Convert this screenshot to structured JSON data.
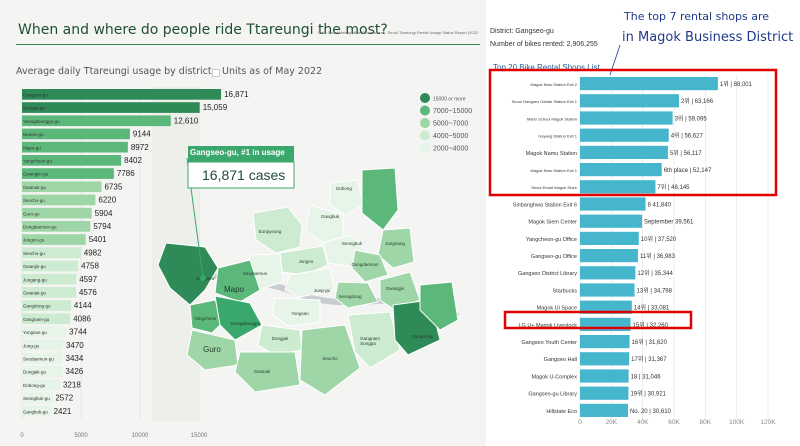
{
  "left_panel": {
    "title": "When and where do people ride Ttareungi the most?",
    "source": "Data Seoul Metropolitan Government - Seoul Ttareungi Rental Usage Status Report (2022)",
    "subtitle": "Average daily Ttareungi usage by district",
    "units": "Units as of May 2022",
    "callout_title": "Gangseo-gu, #1 in usage",
    "callout_value": "16,871 cases",
    "colors": {
      "dark": "#2e8b57",
      "mid": "#5cb87a",
      "light": "#9fd6a8",
      "pale": "#cdebd0",
      "faint": "#e7f4e8",
      "highlight": "#3aa76d"
    }
  },
  "map": {
    "legend": [
      "15000 or more",
      "7000~15000",
      "5000~7000",
      "4000~5000",
      "2000~4000"
    ],
    "labels": [
      "Dobong",
      "Gangbuk",
      "Eunpyeong",
      "Seongbuk",
      "Jongno",
      "Seodaemun",
      "Mapo",
      "Jung-gu",
      "Yongsan",
      "Gangseo",
      "Yangcheon",
      "Yeongdeungpo",
      "Guro",
      "Dongjak",
      "Gwanak",
      "Seocho",
      "Gangnam",
      "Songpa",
      "Gangdong",
      "Gwangjin",
      "Seongdong",
      "Jungnang",
      "Dongdaemun"
    ]
  },
  "right_panel": {
    "district": "District: Gangseo-gu",
    "bikes_rented": "Number of bikes rented: 2,906,255",
    "annotation_line1": "The top 7 rental shops are",
    "annotation_line2": "in Magok Business District",
    "list_title": "Top 20 Bike Rental Shops List"
  },
  "chart_data": [
    {
      "type": "bar",
      "orientation": "horizontal",
      "title": "Average daily Ttareungi usage by district",
      "categories": [
        "Gangseo-gu",
        "Songpa-gu",
        "Yeongdeungpo-gu",
        "Nowon-gu",
        "Mapo-gu",
        "Yangcheon-gu",
        "Gwangjin-gu",
        "Gwanak-gu",
        "Seocho-gu",
        "Guro-gu",
        "Dongdaemun-gu",
        "Jongno-gu",
        "Seocho-gu",
        "Gwanjin-gu",
        "Jungang-gu",
        "Gwanak-gu",
        "Gangdong-gu",
        "Gangnam-gu",
        "Yongsan-gu",
        "Jung-gu",
        "Seodaemun-gu",
        "Dongjak-gu",
        "Dobong-gu",
        "Seongbuk-gu",
        "Gangbuk-gu"
      ],
      "value_labels": [
        "16,871",
        "15,059",
        "12,610",
        "9144",
        "8972",
        "8402",
        "7786",
        "6735",
        "6220",
        "5904",
        "5794",
        "5401",
        "4982",
        "4758",
        "4597",
        "4576",
        "4144",
        "4086",
        "3744",
        "3470",
        "3434",
        "3426",
        "3218",
        "2572",
        "2421"
      ],
      "values": [
        16871,
        15059,
        12610,
        9144,
        8972,
        8402,
        7786,
        6735,
        6220,
        5904,
        5794,
        5401,
        4982,
        4758,
        4597,
        4576,
        4144,
        4086,
        3744,
        3470,
        3434,
        3426,
        3218,
        2572,
        2421
      ],
      "xlim": [
        0,
        15000
      ],
      "ticks": [
        "0",
        "5000",
        "10000",
        "15000"
      ]
    },
    {
      "type": "bar",
      "orientation": "horizontal",
      "title": "Top 20 Bike Rental Shops List",
      "categories": [
        "Magok Naru Station Exit 2",
        "Seoul Gangseo Gahae Station Exit 1",
        "Maho School Magok Station",
        "Gayang Station Exit 1",
        "Magok Namu Station",
        "Magok Naru Station Exit 1",
        "Seoul Emart Magok Store",
        "Sinbanghwa Station Exit 6",
        "Magok Siem Center",
        "Yangcheon-gu Office",
        "Gangseo-gu Office",
        "Gangseo District Library",
        "Starbucks",
        "Magok Ui Space",
        "LG U+ Magok Livestock",
        "Gangseo Youth Center",
        "Gangseo Hall",
        "Magok U-Complex",
        "Gangseo-gu Library",
        "Hillstate Eco"
      ],
      "value_labels": [
        "1위 | 88,001",
        "2위 | 63,166",
        "3위 | 59,095",
        "4위 | 56,627",
        "5위 | 56,117",
        "6th place | 52,147",
        "7위 | 48,145",
        "8 41,840",
        "September 39,561",
        "10위 | 37,520",
        "11위 | 36,983",
        "12위 | 35,344",
        "13위 | 34,798",
        "14위 | 33,081",
        "15위 | 32,260",
        "16위 | 31,620",
        "17위 | 31,367",
        "18 | 31,046",
        "19위 | 30,921",
        "No. 20 | 30,610"
      ],
      "values": [
        88001,
        63166,
        59095,
        56627,
        56117,
        52147,
        48145,
        41840,
        39561,
        37520,
        36983,
        35344,
        34798,
        33081,
        32260,
        31620,
        31367,
        31046,
        30921,
        30610
      ],
      "xlim": [
        0,
        120000
      ],
      "ticks": [
        "0",
        "20K",
        "40K",
        "60K",
        "80K",
        "100K",
        "120K"
      ]
    }
  ]
}
